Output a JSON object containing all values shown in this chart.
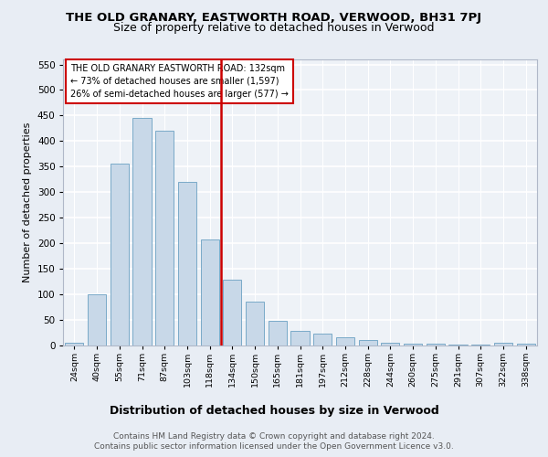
{
  "title1": "THE OLD GRANARY, EASTWORTH ROAD, VERWOOD, BH31 7PJ",
  "title2": "Size of property relative to detached houses in Verwood",
  "xlabel": "Distribution of detached houses by size in Verwood",
  "ylabel": "Number of detached properties",
  "categories": [
    "24sqm",
    "40sqm",
    "55sqm",
    "71sqm",
    "87sqm",
    "103sqm",
    "118sqm",
    "134sqm",
    "150sqm",
    "165sqm",
    "181sqm",
    "197sqm",
    "212sqm",
    "228sqm",
    "244sqm",
    "260sqm",
    "275sqm",
    "291sqm",
    "307sqm",
    "322sqm",
    "338sqm"
  ],
  "bar_heights": [
    5,
    100,
    355,
    445,
    420,
    320,
    207,
    128,
    85,
    48,
    27,
    22,
    15,
    10,
    5,
    3,
    2,
    1,
    1,
    5,
    2
  ],
  "bar_color": "#c8d8e8",
  "bar_edge_color": "#7aaac8",
  "vline_color": "#cc0000",
  "annotation_text": "THE OLD GRANARY EASTWORTH ROAD: 132sqm\n← 73% of detached houses are smaller (1,597)\n26% of semi-detached houses are larger (577) →",
  "annotation_box_color": "#cc0000",
  "ylim": [
    0,
    560
  ],
  "yticks": [
    0,
    50,
    100,
    150,
    200,
    250,
    300,
    350,
    400,
    450,
    500,
    550
  ],
  "footer1": "Contains HM Land Registry data © Crown copyright and database right 2024.",
  "footer2": "Contains public sector information licensed under the Open Government Licence v3.0.",
  "bg_color": "#e8edf4",
  "plot_bg_color": "#eef2f7",
  "grid_color": "#ffffff",
  "title1_fontsize": 9.5,
  "title2_fontsize": 9,
  "ylabel_fontsize": 8,
  "xlabel_fontsize": 9,
  "tick_fontsize": 7.5,
  "xtick_fontsize": 6.8,
  "footer_fontsize": 6.5
}
